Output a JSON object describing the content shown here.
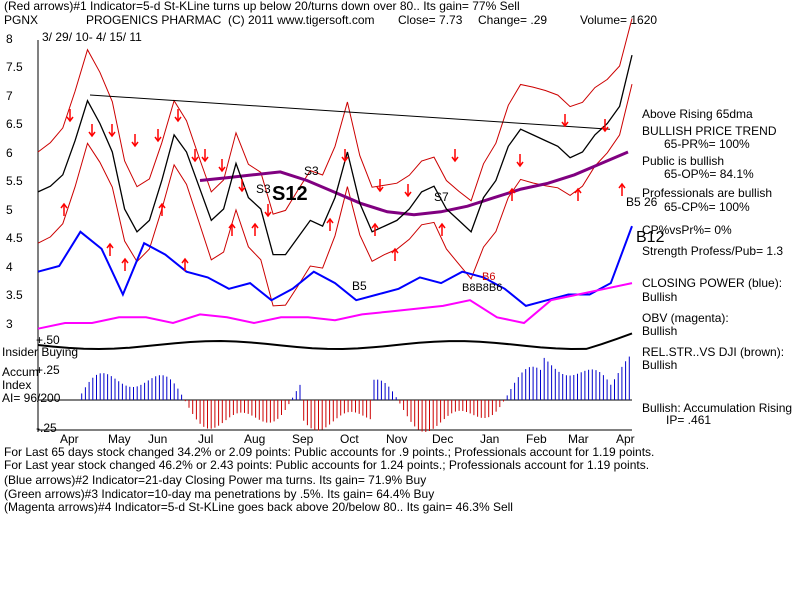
{
  "header": {
    "line1": "(Red arrows)#1 Indicator=5-d St-KLine turns up below 20/turns down over 80.. Its gain= 77% Sell",
    "symbol": "PGNX",
    "company": "PROGENICS PHARMAC",
    "copyright": "(C) 2011 www.tigersoft.com",
    "close": "Close=  7.73",
    "change": "Change= .29",
    "volume": "Volume= 1620",
    "date_range": "3/ 29/ 10-  4/ 15/ 11"
  },
  "left_labels": {
    "insider": "Insider Buying",
    "accum_line1": "Accum",
    "accum_line2": "Index",
    "accum_ai": "AI= 96/200",
    "plus50": "+.50",
    "plus25": "+.25",
    "minus25": "-.25"
  },
  "right_labels": [
    {
      "id": "above65",
      "text": "Above Rising 65dma"
    },
    {
      "id": "trend",
      "text": "BULLISH PRICE TREND"
    },
    {
      "id": "pr",
      "text": "65-PR%= 100%"
    },
    {
      "id": "public",
      "text": "Public is bullish"
    },
    {
      "id": "op",
      "text": "65-OP%= 84.1%"
    },
    {
      "id": "prof",
      "text": "Professionals are bullish"
    },
    {
      "id": "cp",
      "text": "65-CP%= 100%"
    },
    {
      "id": "cpvspr",
      "text": "CP%vsPr%=  0%"
    },
    {
      "id": "strength",
      "text": "Strength Profess/Pub= 1.3"
    },
    {
      "id": "closingpower",
      "text": "CLOSING POWER (blue):"
    },
    {
      "id": "cpbull",
      "text": "Bullish"
    },
    {
      "id": "obv",
      "text": "OBV (magenta):"
    },
    {
      "id": "obvbull",
      "text": "Bullish"
    },
    {
      "id": "relstr",
      "text": "REL.STR..VS DJI (brown):"
    },
    {
      "id": "relbull",
      "text": "Bullish"
    },
    {
      "id": "accumrising",
      "text": "Bullish: Accumulation Rising"
    },
    {
      "id": "ip",
      "text": "IP=  .461"
    }
  ],
  "annotations": {
    "s12": "S12",
    "s3a": "S3",
    "s3b": "S3",
    "s7": "S7",
    "b5": "B5",
    "b12": "B12",
    "b5b26": "B5 26",
    "bbb": "B8B8B6",
    "b6": "B6"
  },
  "footer": [
    "For Last 65 days stock changed  34.2% or  2.09 points:  Public accounts for  .9 points.;  Professionals account for  1.19 points.",
    "For Last year stock changed  46.2% or  2.43 points:  Public accounts for  1.24 points.;  Professionals account for  1.19 points.",
    "(Blue arrows)#2 Indicator=21-day Closing Power ma turns. Its gain= 71.9% Buy",
    "(Green arrows)#3 Indicator=10-day ma penetrations by .5%. Its gain= 64.4% Buy",
    "(Magenta arrows)#4 Indicator=5-d St-KLine goes back above 20/below 80.. Its gain= 46.3% Sell"
  ],
  "colors": {
    "price": "#000000",
    "ma65": "#800080",
    "bands": "#cc0000",
    "closing_power": "#0000ff",
    "obv": "#ff00ff",
    "relstr": "#000000",
    "accum_pos": "#0000cc",
    "accum_neg": "#cc0000",
    "arrow_red": "#ff0000",
    "arrow_mag": "#ff00ff"
  },
  "chart_data": {
    "type": "line",
    "ylim": [
      3,
      8
    ],
    "y_ticks": [
      "8",
      "7.5",
      "7",
      "6.5",
      "6",
      "5.5",
      "5",
      "4.5",
      "4",
      "3.5",
      "3"
    ],
    "x_months": [
      "Apr",
      "May",
      "Jun",
      "Jul",
      "Aug",
      "Sep",
      "Oct",
      "Nov",
      "Dec",
      "Jan",
      "Feb",
      "Mar",
      "Apr"
    ],
    "price": [
      5.3,
      5.4,
      5.6,
      6.2,
      6.9,
      6.5,
      6.0,
      5.0,
      4.6,
      4.8,
      5.5,
      6.3,
      6.0,
      5.4,
      4.8,
      5.0,
      5.8,
      5.2,
      5.0,
      4.2,
      4.2,
      4.5,
      4.8,
      4.7,
      5.2,
      6.0,
      5.1,
      4.6,
      4.7,
      4.8,
      5.0,
      5.3,
      5.4,
      5.0,
      4.8,
      4.6,
      5.2,
      5.5,
      6.1,
      6.4,
      6.3,
      6.2,
      6.1,
      5.9,
      6.0,
      6.3,
      6.5,
      6.8,
      7.7
    ],
    "ma65": [
      5.5,
      5.55,
      5.6,
      5.65,
      5.5,
      5.3,
      5.1,
      4.95,
      4.9,
      4.95,
      5.05,
      5.2,
      5.35,
      5.45,
      5.6,
      5.8,
      6.0
    ],
    "closing_power": [
      3.9,
      4.0,
      4.6,
      4.3,
      3.5,
      4.4,
      4.2,
      3.9,
      3.8,
      3.6,
      3.7,
      3.4,
      3.6,
      3.9,
      3.7,
      3.4,
      3.5,
      3.6,
      3.8,
      3.7,
      3.9,
      3.8,
      3.6,
      3.3,
      3.4,
      3.5,
      3.5,
      3.7,
      4.7
    ],
    "obv": [
      2.9,
      3.0,
      3.0,
      3.1,
      3.1,
      3.0,
      3.15,
      3.1,
      3.0,
      3.1,
      3.1,
      3.05,
      3.15,
      3.2,
      3.25,
      3.3,
      3.4,
      3.1,
      3.0,
      3.4,
      3.5,
      3.6,
      3.7
    ]
  }
}
